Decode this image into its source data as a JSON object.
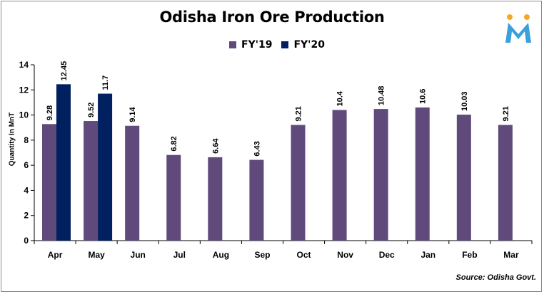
{
  "chart_data": {
    "type": "bar",
    "title": "Odisha Iron Ore Production",
    "ylabel": "Quantity In MnT",
    "xlabel": "",
    "ylim": [
      0,
      14
    ],
    "yticks": [
      0,
      2,
      4,
      6,
      8,
      10,
      12,
      14
    ],
    "categories": [
      "Apr",
      "May",
      "Jun",
      "Jul",
      "Aug",
      "Sep",
      "Oct",
      "Nov",
      "Dec",
      "Jan",
      "Feb",
      "Mar"
    ],
    "series": [
      {
        "name": "FY'19",
        "color": "#604a7b",
        "values": [
          9.28,
          9.52,
          9.14,
          6.82,
          6.64,
          6.43,
          9.21,
          10.4,
          10.48,
          10.6,
          10.03,
          9.21
        ],
        "labels": [
          "9.28",
          "9.52",
          "9.14",
          "6.82",
          "6.64",
          "6.43",
          "9.21",
          "10.4",
          "10.48",
          "10.6",
          "10.03",
          "9.21"
        ]
      },
      {
        "name": "FY'20",
        "color": "#002060",
        "values": [
          12.45,
          11.7,
          null,
          null,
          null,
          null,
          null,
          null,
          null,
          null,
          null,
          null
        ],
        "labels": [
          "12.45",
          "11.7",
          null,
          null,
          null,
          null,
          null,
          null,
          null,
          null,
          null,
          null
        ]
      }
    ],
    "grid": false,
    "legend_position": "top-center",
    "source": "Source: Odisha Govt."
  },
  "logo": {
    "letter": "M",
    "accent": "#f7a823",
    "body": "#3aa0d9"
  }
}
